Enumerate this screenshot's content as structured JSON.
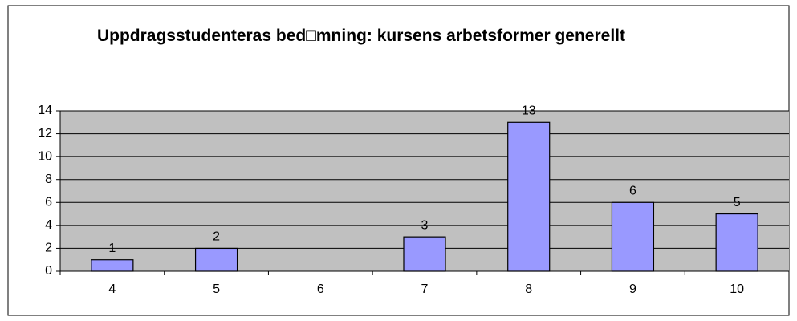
{
  "chart_data": {
    "type": "bar",
    "title": "Uppdragsstudenteras bed□mning: kursens arbetsformer generellt",
    "categories": [
      "4",
      "5",
      "6",
      "7",
      "8",
      "9",
      "10"
    ],
    "values": [
      1,
      2,
      null,
      3,
      13,
      6,
      5
    ],
    "color": "#9999ff",
    "ylim": [
      0,
      14
    ],
    "yticks": [
      0,
      2,
      4,
      6,
      8,
      10,
      12,
      14
    ],
    "grid": true
  }
}
